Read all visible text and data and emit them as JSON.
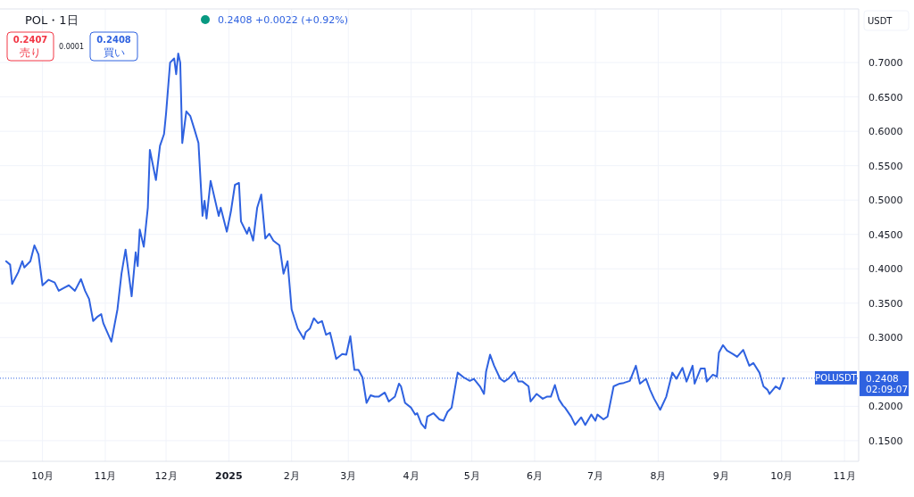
{
  "chart_data": {
    "type": "line",
    "title": "POL・1日",
    "color": "#2f62e0",
    "grid": true,
    "annotations": [
      "0.2408 +0.0022 (+0.92%)",
      "0.2407",
      "売り",
      "0.0001",
      "0.2408",
      "買い",
      "USDT",
      "0.2408",
      "02:09:07"
    ],
    "ref_lines": [
      {
        "axis": "y",
        "value": 0.2408,
        "label": "POLUSDT",
        "color": "#2f62e0",
        "line_style": "dotted"
      }
    ],
    "xlim": [
      "2024-09-10",
      "2025-11-08"
    ],
    "xticks": [
      {
        "value": "2024-10-01",
        "label": "10月"
      },
      {
        "value": "2024-11-01",
        "label": "11月"
      },
      {
        "value": "2024-12-01",
        "label": "12月"
      },
      {
        "value": "2025-01-01",
        "label": "2025"
      },
      {
        "value": "2025-02-01",
        "label": "2月"
      },
      {
        "value": "2025-03-01",
        "label": "3月"
      },
      {
        "value": "2025-04-01",
        "label": "4月"
      },
      {
        "value": "2025-05-01",
        "label": "5月"
      },
      {
        "value": "2025-06-01",
        "label": "6月"
      },
      {
        "value": "2025-07-01",
        "label": "7月"
      },
      {
        "value": "2025-08-01",
        "label": "8月"
      },
      {
        "value": "2025-09-01",
        "label": "9月"
      },
      {
        "value": "2025-10-01",
        "label": "10月"
      },
      {
        "value": "2025-11-01",
        "label": "11月"
      }
    ],
    "ylim": [
      0.12,
      0.778
    ],
    "yticks": [
      {
        "value": 0.15,
        "label": "0.1500"
      },
      {
        "value": 0.2,
        "label": "0.2000"
      },
      {
        "value": 0.25,
        "label": null
      },
      {
        "value": 0.3,
        "label": "0.3000"
      },
      {
        "value": 0.35,
        "label": "0.3500"
      },
      {
        "value": 0.4,
        "label": "0.4000"
      },
      {
        "value": 0.45,
        "label": "0.4500"
      },
      {
        "value": 0.5,
        "label": "0.5000"
      },
      {
        "value": 0.55,
        "label": "0.5500"
      },
      {
        "value": 0.6,
        "label": "0.6000"
      },
      {
        "value": 0.65,
        "label": "0.6500"
      },
      {
        "value": 0.7,
        "label": "0.7000"
      }
    ],
    "x": [
      "2024-09-13",
      "2024-09-15",
      "2024-09-16",
      "2024-09-19",
      "2024-09-21",
      "2024-09-22",
      "2024-09-25",
      "2024-09-27",
      "2024-09-29",
      "2024-10-01",
      "2024-10-04",
      "2024-10-07",
      "2024-10-09",
      "2024-10-12",
      "2024-10-14",
      "2024-10-17",
      "2024-10-20",
      "2024-10-22",
      "2024-10-24",
      "2024-10-26",
      "2024-10-28",
      "2024-10-30",
      "2024-10-31",
      "2024-11-04",
      "2024-11-07",
      "2024-11-09",
      "2024-11-11",
      "2024-11-14",
      "2024-11-16",
      "2024-11-17",
      "2024-11-18",
      "2024-11-20",
      "2024-11-22",
      "2024-11-23",
      "2024-11-26",
      "2024-11-28",
      "2024-11-30",
      "2024-12-01",
      "2024-12-03",
      "2024-12-05",
      "2024-12-06",
      "2024-12-07",
      "2024-12-08",
      "2024-12-09",
      "2024-12-11",
      "2024-12-13",
      "2024-12-15",
      "2024-12-17",
      "2024-12-19",
      "2024-12-20",
      "2024-12-21",
      "2024-12-23",
      "2024-12-27",
      "2024-12-28",
      "2024-12-31",
      "2025-01-02",
      "2025-01-04",
      "2025-01-06",
      "2025-01-07",
      "2025-01-10",
      "2025-01-11",
      "2025-01-13",
      "2025-01-15",
      "2025-01-17",
      "2025-01-19",
      "2025-01-21",
      "2025-01-23",
      "2025-01-26",
      "2025-01-28",
      "2025-01-30",
      "2025-02-01",
      "2025-02-04",
      "2025-02-07",
      "2025-02-08",
      "2025-02-10",
      "2025-02-12",
      "2025-02-14",
      "2025-02-16",
      "2025-02-18",
      "2025-02-20",
      "2025-02-21",
      "2025-02-23",
      "2025-02-26",
      "2025-02-28",
      "2025-03-02",
      "2025-03-04",
      "2025-03-06",
      "2025-03-08",
      "2025-03-10",
      "2025-03-12",
      "2025-03-14",
      "2025-03-16",
      "2025-03-19",
      "2025-03-21",
      "2025-03-24",
      "2025-03-26",
      "2025-03-27",
      "2025-03-29",
      "2025-04-01",
      "2025-04-03",
      "2025-04-04",
      "2025-04-06",
      "2025-04-08",
      "2025-04-09",
      "2025-04-12",
      "2025-04-15",
      "2025-04-17",
      "2025-04-19",
      "2025-04-21",
      "2025-04-24",
      "2025-04-27",
      "2025-04-30",
      "2025-05-02",
      "2025-05-05",
      "2025-05-07",
      "2025-05-08",
      "2025-05-10",
      "2025-05-12",
      "2025-05-15",
      "2025-05-17",
      "2025-05-19",
      "2025-05-22",
      "2025-05-24",
      "2025-05-26",
      "2025-05-29",
      "2025-05-30",
      "2025-06-02",
      "2025-06-05",
      "2025-06-07",
      "2025-06-09",
      "2025-06-11",
      "2025-06-13",
      "2025-06-15",
      "2025-06-16",
      "2025-06-19",
      "2025-06-21",
      "2025-06-24",
      "2025-06-26",
      "2025-06-29",
      "2025-07-01",
      "2025-07-02",
      "2025-07-05",
      "2025-07-07",
      "2025-07-10",
      "2025-07-13",
      "2025-07-15",
      "2025-07-18",
      "2025-07-21",
      "2025-07-23",
      "2025-07-26",
      "2025-07-28",
      "2025-07-30",
      "2025-08-02",
      "2025-08-05",
      "2025-08-08",
      "2025-08-10",
      "2025-08-13",
      "2025-08-15",
      "2025-08-18",
      "2025-08-19",
      "2025-08-22",
      "2025-08-24",
      "2025-08-25",
      "2025-08-28",
      "2025-08-30",
      "2025-08-31",
      "2025-09-02",
      "2025-09-04",
      "2025-09-07",
      "2025-09-09",
      "2025-09-12",
      "2025-09-15",
      "2025-09-17",
      "2025-09-20",
      "2025-09-22",
      "2025-09-24",
      "2025-09-25",
      "2025-09-28",
      "2025-09-30",
      "2025-10-02"
    ],
    "values": [
      0.411,
      0.406,
      0.378,
      0.395,
      0.411,
      0.402,
      0.411,
      0.434,
      0.421,
      0.376,
      0.384,
      0.38,
      0.368,
      0.373,
      0.376,
      0.368,
      0.385,
      0.368,
      0.356,
      0.324,
      0.33,
      0.334,
      0.321,
      0.294,
      0.341,
      0.393,
      0.428,
      0.36,
      0.424,
      0.404,
      0.457,
      0.432,
      0.489,
      0.573,
      0.529,
      0.579,
      0.596,
      0.626,
      0.7,
      0.706,
      0.683,
      0.713,
      0.7,
      0.583,
      0.629,
      0.622,
      0.603,
      0.583,
      0.477,
      0.499,
      0.473,
      0.528,
      0.477,
      0.489,
      0.454,
      0.483,
      0.522,
      0.525,
      0.469,
      0.451,
      0.46,
      0.441,
      0.489,
      0.508,
      0.444,
      0.451,
      0.441,
      0.434,
      0.393,
      0.411,
      0.341,
      0.313,
      0.298,
      0.308,
      0.313,
      0.328,
      0.321,
      0.324,
      0.304,
      0.307,
      0.295,
      0.269,
      0.276,
      0.275,
      0.302,
      0.253,
      0.253,
      0.242,
      0.205,
      0.216,
      0.214,
      0.214,
      0.22,
      0.207,
      0.214,
      0.233,
      0.229,
      0.205,
      0.198,
      0.188,
      0.19,
      0.175,
      0.168,
      0.185,
      0.19,
      0.181,
      0.179,
      0.192,
      0.198,
      0.249,
      0.242,
      0.237,
      0.24,
      0.229,
      0.218,
      0.25,
      0.275,
      0.259,
      0.24,
      0.236,
      0.24,
      0.25,
      0.236,
      0.236,
      0.229,
      0.207,
      0.218,
      0.211,
      0.214,
      0.214,
      0.231,
      0.21,
      0.201,
      0.198,
      0.185,
      0.173,
      0.184,
      0.173,
      0.188,
      0.179,
      0.188,
      0.181,
      0.185,
      0.229,
      0.233,
      0.234,
      0.237,
      0.259,
      0.233,
      0.24,
      0.224,
      0.211,
      0.195,
      0.214,
      0.249,
      0.24,
      0.256,
      0.236,
      0.259,
      0.233,
      0.255,
      0.255,
      0.236,
      0.246,
      0.243,
      0.278,
      0.289,
      0.281,
      0.276,
      0.272,
      0.282,
      0.259,
      0.263,
      0.249,
      0.229,
      0.224,
      0.218,
      0.229,
      0.225,
      0.241
    ]
  }
}
